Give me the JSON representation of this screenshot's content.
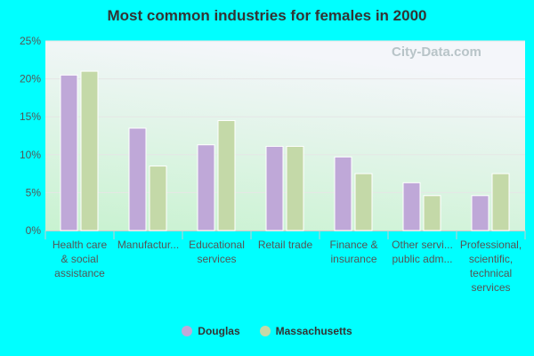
{
  "chart_data": {
    "type": "bar",
    "title": "Most common industries for females in 2000",
    "categories": [
      [
        "Health care",
        "& social",
        "assistance"
      ],
      [
        "Manufactur..."
      ],
      [
        "Educational",
        "services"
      ],
      [
        "Retail trade"
      ],
      [
        "Finance &",
        "insurance"
      ],
      [
        "Other servi...",
        "public adm..."
      ],
      [
        "Professional,",
        "scientific,",
        "technical",
        "services"
      ]
    ],
    "series": [
      {
        "name": "Douglas",
        "color": "#bfa8d8",
        "values": [
          20.5,
          13.5,
          11.3,
          11.1,
          9.7,
          6.3,
          4.6
        ]
      },
      {
        "name": "Massachusetts",
        "color": "#c4d9a8",
        "values": [
          21.0,
          8.5,
          14.5,
          11.1,
          7.5,
          4.6,
          7.5
        ]
      }
    ],
    "ylim": [
      0,
      25
    ],
    "yticks": [
      "0%",
      "5%",
      "10%",
      "15%",
      "20%",
      "25%"
    ],
    "grid": true,
    "legend": "bottom"
  },
  "watermark": "City-Data.com"
}
